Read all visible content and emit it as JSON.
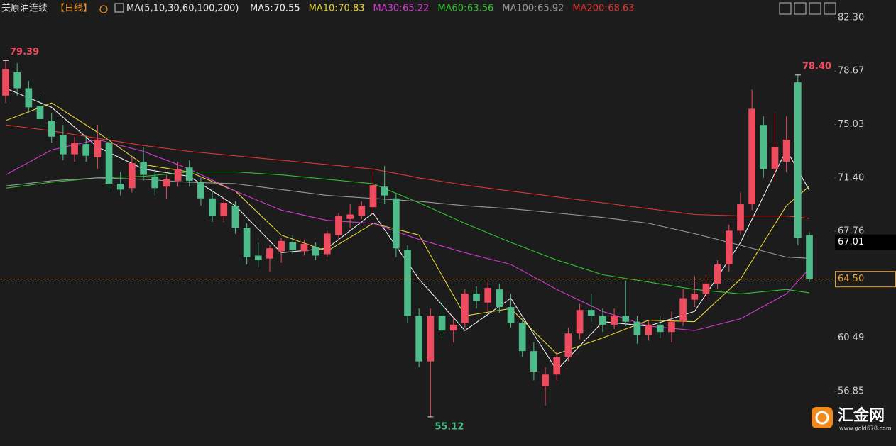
{
  "chart_data": {
    "type": "candlestick",
    "title": "美原油连续",
    "period": "【日线】",
    "ma_title": "MA(5,10,30,60,100,200)",
    "up_color": "#ee4b5e",
    "down_color": "#4dbb8a",
    "ylim": [
      53.57,
      83.51
    ],
    "yticks": [
      {
        "value": 82.3,
        "label": "82.30"
      },
      {
        "value": 78.67,
        "label": "78.67"
      },
      {
        "value": 75.03,
        "label": "75.03"
      },
      {
        "value": 71.4,
        "label": "71.40"
      },
      {
        "value": 67.76,
        "label": "67.76"
      },
      {
        "value": 60.49,
        "label": "60.49"
      },
      {
        "value": 56.85,
        "label": "56.85"
      }
    ],
    "ohlc": [
      [
        77.0,
        79.39,
        76.5,
        78.8
      ],
      [
        78.6,
        79.2,
        77.0,
        77.5
      ],
      [
        77.5,
        78.0,
        75.8,
        76.2
      ],
      [
        76.3,
        77.0,
        75.0,
        75.4
      ],
      [
        75.3,
        75.8,
        73.8,
        74.2
      ],
      [
        74.3,
        75.0,
        72.6,
        73.0
      ],
      [
        73.0,
        74.2,
        72.5,
        73.8
      ],
      [
        73.7,
        74.3,
        72.5,
        72.9
      ],
      [
        72.8,
        75.0,
        72.0,
        74.0
      ],
      [
        73.8,
        74.2,
        70.5,
        71.0
      ],
      [
        71.0,
        71.8,
        70.2,
        70.6
      ],
      [
        70.7,
        72.8,
        70.4,
        72.4
      ],
      [
        72.5,
        73.5,
        71.2,
        71.6
      ],
      [
        71.5,
        72.0,
        70.2,
        70.7
      ],
      [
        70.8,
        71.6,
        70.0,
        71.3
      ],
      [
        71.2,
        72.5,
        70.8,
        72.0
      ],
      [
        72.1,
        72.6,
        70.8,
        71.2
      ],
      [
        71.1,
        71.5,
        69.5,
        70.0
      ],
      [
        70.0,
        70.5,
        68.4,
        68.8
      ],
      [
        68.8,
        70.0,
        68.4,
        69.7
      ],
      [
        69.5,
        69.8,
        67.6,
        68.0
      ],
      [
        68.0,
        68.3,
        65.5,
        66.0
      ],
      [
        66.1,
        67.0,
        65.3,
        65.8
      ],
      [
        65.9,
        66.8,
        65.0,
        66.6
      ],
      [
        66.4,
        67.3,
        65.6,
        67.1
      ],
      [
        67.0,
        67.5,
        66.2,
        66.5
      ],
      [
        66.4,
        67.2,
        66.1,
        66.9
      ],
      [
        66.7,
        67.0,
        65.8,
        66.1
      ],
      [
        66.2,
        67.8,
        66.0,
        67.6
      ],
      [
        67.5,
        69.0,
        67.2,
        68.8
      ],
      [
        68.6,
        69.6,
        68.0,
        68.9
      ],
      [
        68.8,
        69.8,
        68.6,
        69.5
      ],
      [
        69.4,
        71.9,
        69.0,
        70.9
      ],
      [
        70.8,
        72.2,
        69.6,
        70.2
      ],
      [
        70.0,
        70.3,
        66.0,
        66.6
      ],
      [
        66.5,
        66.8,
        61.5,
        62.0
      ],
      [
        62.0,
        62.5,
        58.5,
        58.9
      ],
      [
        58.9,
        62.5,
        55.12,
        62.0
      ],
      [
        62.0,
        63.0,
        60.5,
        61.0
      ],
      [
        61.0,
        61.9,
        60.2,
        61.4
      ],
      [
        61.5,
        63.8,
        61.2,
        63.5
      ],
      [
        63.5,
        64.0,
        62.5,
        63.0
      ],
      [
        62.9,
        64.3,
        62.3,
        63.9
      ],
      [
        63.8,
        64.2,
        62.2,
        62.6
      ],
      [
        62.6,
        63.5,
        61.2,
        61.5
      ],
      [
        61.5,
        61.8,
        59.2,
        59.6
      ],
      [
        59.6,
        60.2,
        57.6,
        58.2
      ],
      [
        57.2,
        58.5,
        55.9,
        58.0
      ],
      [
        58.0,
        59.5,
        57.6,
        59.2
      ],
      [
        59.2,
        61.2,
        58.9,
        60.8
      ],
      [
        60.8,
        62.8,
        60.4,
        62.4
      ],
      [
        62.4,
        63.5,
        61.6,
        62.0
      ],
      [
        62.0,
        62.5,
        60.9,
        61.4
      ],
      [
        61.4,
        62.5,
        61.1,
        62.0
      ],
      [
        62.0,
        64.4,
        61.3,
        61.6
      ],
      [
        61.6,
        62.0,
        60.1,
        60.7
      ],
      [
        60.7,
        61.7,
        60.3,
        61.4
      ],
      [
        61.4,
        62.0,
        60.5,
        60.9
      ],
      [
        60.9,
        62.3,
        60.2,
        61.6
      ],
      [
        61.6,
        63.8,
        61.3,
        63.2
      ],
      [
        63.1,
        64.7,
        62.6,
        63.5
      ],
      [
        63.5,
        64.8,
        63.0,
        64.2
      ],
      [
        64.2,
        65.8,
        63.8,
        65.5
      ],
      [
        65.5,
        68.2,
        65.0,
        67.8
      ],
      [
        67.8,
        70.4,
        67.5,
        69.6
      ],
      [
        69.6,
        77.4,
        69.2,
        76.1
      ],
      [
        75.0,
        75.6,
        71.4,
        72.0
      ],
      [
        72.0,
        75.8,
        71.2,
        73.5
      ],
      [
        72.5,
        75.6,
        71.8,
        74.0
      ],
      [
        77.9,
        78.4,
        66.8,
        67.3
      ],
      [
        67.5,
        67.7,
        64.3,
        64.5
      ]
    ],
    "ma": {
      "x": [
        0,
        4,
        8,
        12,
        16,
        20,
        24,
        28,
        32,
        36,
        40,
        44,
        48,
        52,
        56,
        60,
        64,
        68,
        70
      ],
      "series": [
        {
          "name": "MA5",
          "color": "#f2f2f2",
          "values": [
            77.5,
            76.2,
            73.5,
            72,
            71.5,
            69.5,
            66.3,
            66.6,
            69.0,
            64.5,
            61,
            63.2,
            58.3,
            61.6,
            61.3,
            62.3,
            67,
            73.3,
            70.55
          ]
        },
        {
          "name": "MA10",
          "color": "#e6d43a",
          "values": [
            75.3,
            76.5,
            74.5,
            72.3,
            71.8,
            70.5,
            67.5,
            66.4,
            68.3,
            67.5,
            62,
            62.5,
            59.4,
            60.5,
            61.7,
            61.6,
            64.5,
            69.5,
            70.83
          ]
        },
        {
          "name": "MA30",
          "color": "#d23ad2",
          "values": [
            71.6,
            73.3,
            74.0,
            73.2,
            72.0,
            70.5,
            69.2,
            68.5,
            68.3,
            67.2,
            66.3,
            65.5,
            63.8,
            62.3,
            61.3,
            61.0,
            61.8,
            63.5,
            65.22
          ]
        },
        {
          "name": "MA60",
          "color": "#2fc12f",
          "values": [
            70.7,
            71.1,
            71.4,
            71.5,
            71.8,
            71.8,
            71.6,
            71.3,
            71.0,
            69.7,
            68.3,
            67.0,
            65.8,
            64.8,
            64.3,
            63.8,
            63.5,
            63.8,
            63.56
          ]
        },
        {
          "name": "MA100",
          "color": "#9a9a9a",
          "values": [
            70.85,
            71.2,
            71.4,
            71.3,
            71.1,
            71.0,
            70.6,
            70.2,
            70.0,
            69.8,
            69.5,
            69.3,
            69.0,
            68.7,
            68.3,
            67.6,
            66.8,
            66.0,
            65.92
          ]
        },
        {
          "name": "MA200",
          "color": "#e03434",
          "values": [
            75.0,
            74.6,
            74.1,
            73.6,
            73.2,
            72.9,
            72.6,
            72.3,
            72.0,
            71.4,
            70.9,
            70.5,
            70.1,
            69.7,
            69.3,
            68.9,
            68.8,
            68.8,
            68.63
          ]
        }
      ]
    },
    "annotations": [
      79.39,
      {
        "value": 78.4,
        "label": "78.40"
      },
      55.12
    ],
    "price_lines": [
      67.01,
      {
        "value": 64.5,
        "label": "64.50"
      }
    ],
    "watermark": {
      "name": "汇金网",
      "url": "www.gold678.com"
    }
  }
}
